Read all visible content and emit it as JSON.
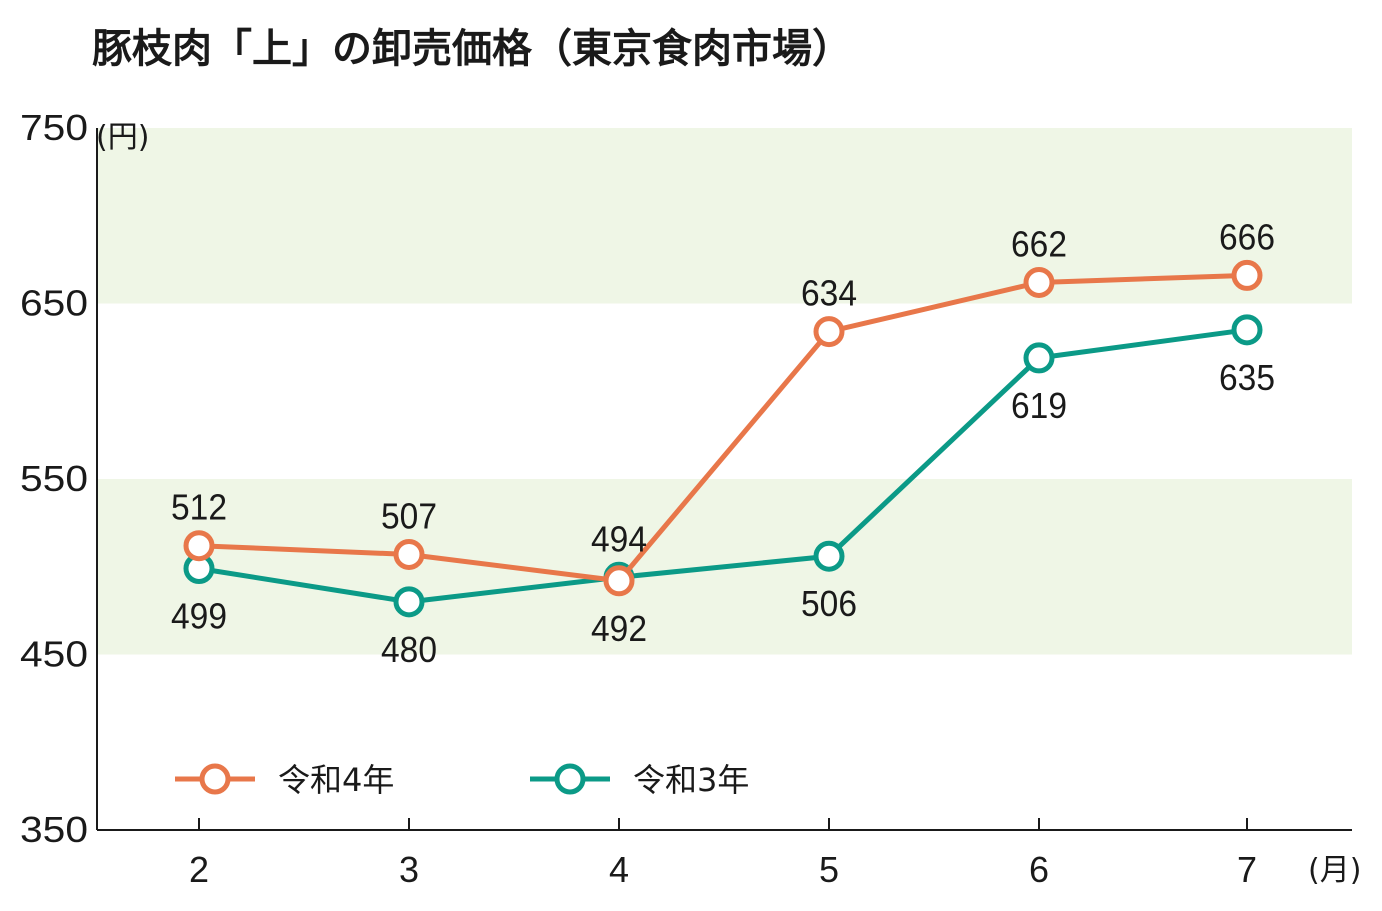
{
  "chart_data": {
    "type": "line",
    "title": "豚枝肉「上」の卸売価格（東京食肉市場）",
    "y_unit": "(円)",
    "x_unit": "(月)",
    "categories": [
      "2",
      "3",
      "4",
      "5",
      "6",
      "7"
    ],
    "ylim": [
      350,
      750
    ],
    "yticks": [
      "350",
      "450",
      "550",
      "650",
      "750"
    ],
    "bands": [
      [
        450,
        550
      ],
      [
        650,
        750
      ]
    ],
    "grid": false,
    "legend_position": "bottom-left",
    "series": [
      {
        "name": "令和4年",
        "color": "#e8774a",
        "values": [
          512,
          507,
          492,
          634,
          662,
          666
        ],
        "labels": [
          "512",
          "507",
          "492",
          "634",
          "662",
          "666"
        ],
        "label_position": [
          "above",
          "above",
          "below",
          "above",
          "above",
          "above"
        ]
      },
      {
        "name": "令和3年",
        "color": "#0b9a87",
        "values": [
          499,
          480,
          494,
          506,
          619,
          635
        ],
        "labels": [
          "499",
          "480",
          "494",
          "506",
          "619",
          "635"
        ],
        "label_position": [
          "below",
          "below",
          "above",
          "below",
          "below",
          "below"
        ]
      }
    ],
    "band_color": "#eff6e6"
  }
}
